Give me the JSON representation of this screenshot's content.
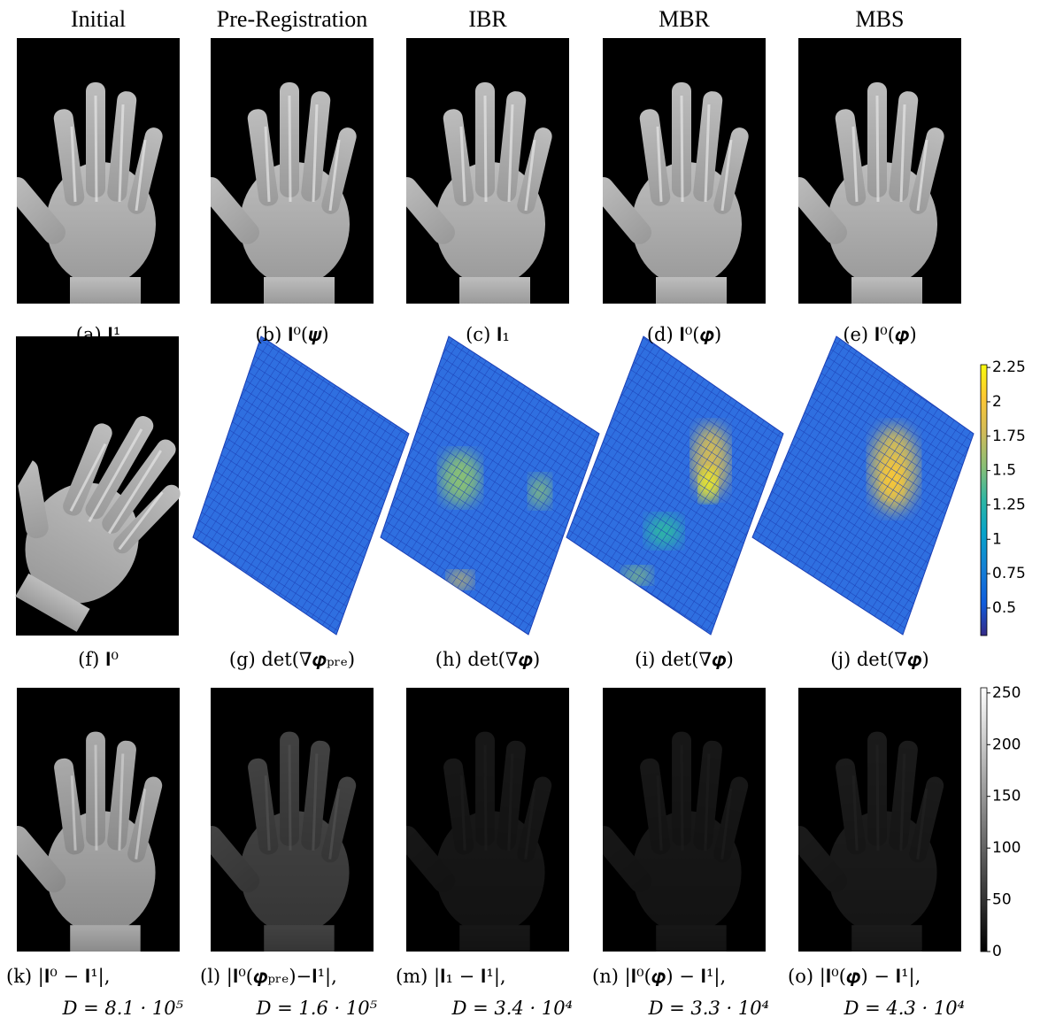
{
  "column_titles": [
    "Initial",
    "Pre-Registration",
    "IBR",
    "MBR",
    "MBS"
  ],
  "rows": [
    {
      "captions": [
        "(a) 𝐈¹",
        "(b) 𝐈⁰(𝝍)",
        "(c) 𝐈₁",
        "(d) 𝐈⁰(𝝋)",
        "(e) 𝐈⁰(𝝋)"
      ]
    },
    {
      "captions": [
        "(f) 𝐈⁰",
        "(g) det(∇𝝋ₚᵣₑ)",
        "(h) det(∇𝝋)",
        "(i) det(∇𝝋)",
        "(j) det(∇𝝋)"
      ]
    },
    {
      "captions": [
        {
          "label": "(k) |𝐈⁰ − 𝐈¹|,",
          "distance": "D = 8.1 · 10⁵"
        },
        {
          "label": "(l) |𝐈⁰(𝝋ₚᵣₑ)−𝐈¹|,",
          "distance": "D = 1.6 · 10⁵"
        },
        {
          "label": "(m) |𝐈₁ − 𝐈¹|,",
          "distance": "D = 3.4 · 10⁴"
        },
        {
          "label": "(n) |𝐈⁰(𝝋) − 𝐈¹|,",
          "distance": "D = 3.3 · 10⁴"
        },
        {
          "label": "(o) |𝐈⁰(𝝋) − 𝐈¹|,",
          "distance": "D = 4.3 · 10⁴"
        }
      ]
    }
  ],
  "colorbars": [
    {
      "lim": [
        0.3,
        2.27
      ],
      "ticks": [
        0.5,
        0.75,
        1,
        1.25,
        1.5,
        1.75,
        2,
        2.25
      ]
    },
    {
      "lim": [
        0,
        255
      ],
      "ticks": [
        0,
        50,
        100,
        150,
        200,
        250
      ]
    }
  ]
}
